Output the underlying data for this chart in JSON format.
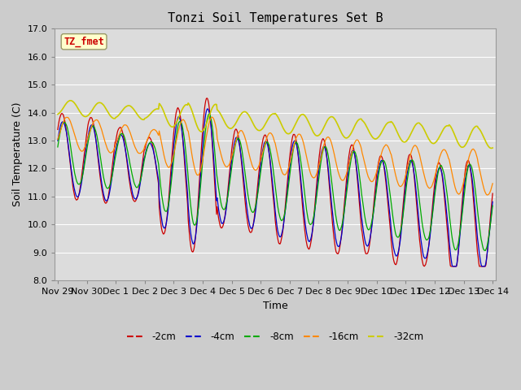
{
  "title": "Tonzi Soil Temperatures Set B",
  "xlabel": "Time",
  "ylabel": "Soil Temperature (C)",
  "ylim": [
    8.0,
    17.0
  ],
  "yticks": [
    8.0,
    9.0,
    10.0,
    11.0,
    12.0,
    13.0,
    14.0,
    15.0,
    16.0,
    17.0
  ],
  "xtick_labels": [
    "Nov 29",
    "Nov 30",
    "Dec 1",
    "Dec 2",
    "Dec 3",
    "Dec 4",
    "Dec 5",
    "Dec 6",
    "Dec 7",
    "Dec 8",
    "Dec 9",
    "Dec 10",
    "Dec 11",
    "Dec 12",
    "Dec 13",
    "Dec 14"
  ],
  "colors": {
    "-2cm": "#cc0000",
    "-4cm": "#0000cc",
    "-8cm": "#00aa00",
    "-16cm": "#ff8800",
    "-32cm": "#cccc00"
  },
  "legend_label": "TZ_fmet",
  "legend_box_color": "#ffffcc",
  "legend_text_color": "#cc0000",
  "title_fontsize": 11,
  "axis_fontsize": 8,
  "label_fontsize": 9
}
